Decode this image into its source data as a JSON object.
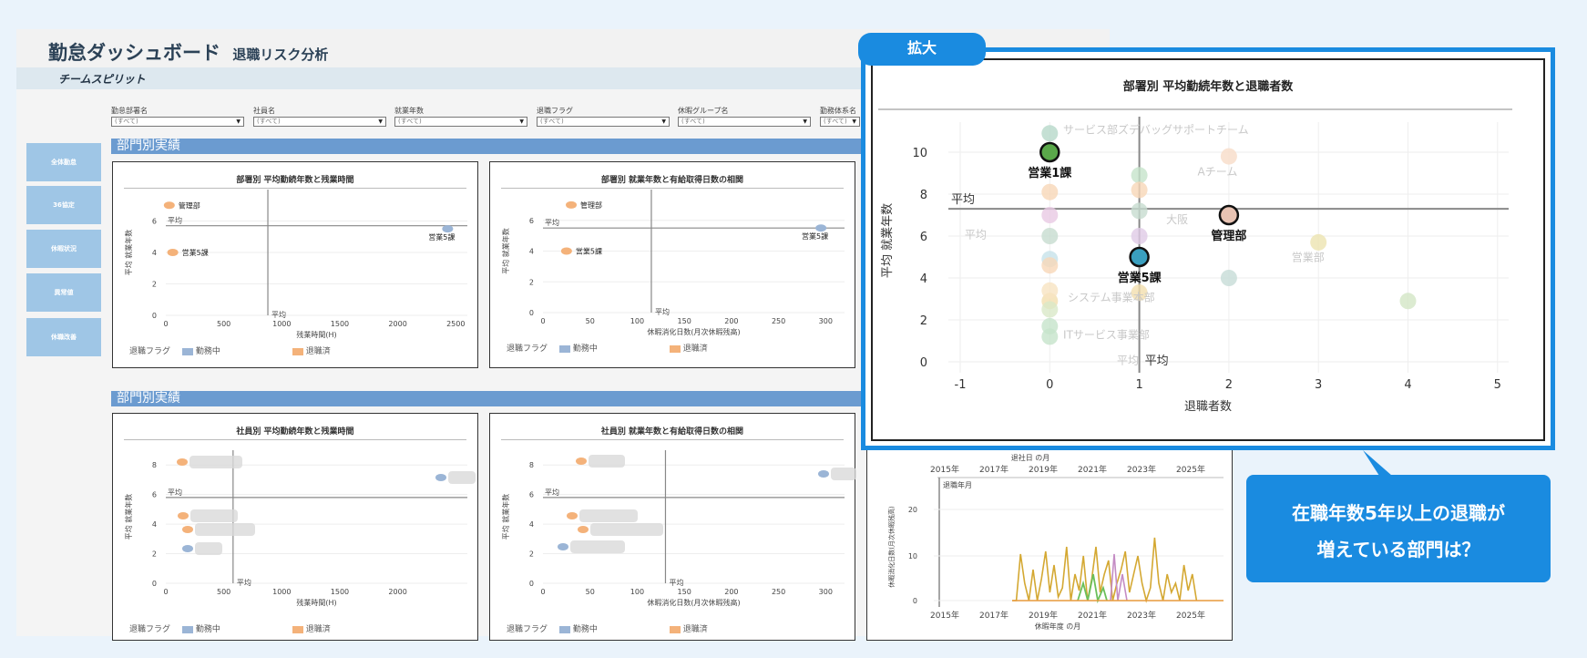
{
  "header": {
    "title": "勤怠ダッシュボード",
    "subtitle": "退職リスク分析",
    "brand": "チームスピリット"
  },
  "sidebar": {
    "items": [
      {
        "label": "全体勤怠"
      },
      {
        "label": "36協定"
      },
      {
        "label": "休暇状況"
      },
      {
        "label": "異常値"
      },
      {
        "label": "休職改善"
      }
    ]
  },
  "filters": [
    {
      "label": "勤怠部署名",
      "value": "(すべて)"
    },
    {
      "label": "社員名",
      "value": "(すべて)"
    },
    {
      "label": "就業年数",
      "value": "(すべて)"
    },
    {
      "label": "退職フラグ",
      "value": "(すべて)"
    },
    {
      "label": "休暇グループ名",
      "value": "(すべて)"
    },
    {
      "label": "勤務体系名",
      "value": "(すべて)"
    }
  ],
  "sections": [
    "部門別実績",
    "部門別実績"
  ],
  "legend": {
    "title": "退職フラグ",
    "active": "勤務中",
    "retired": "退職済"
  },
  "colors": {
    "active": "#9bb5d6",
    "retired": "#f4b27a",
    "accent": "#1a8be0",
    "frame": "#1a8be0"
  },
  "callout": {
    "tab": "拡大",
    "line1": "在職年数5年以上の退職が",
    "line2": "増えている部門は？"
  },
  "chart_data": [
    {
      "type": "scatter",
      "title": "部署別 平均勤続年数と残業時間",
      "xlabel": "残業時間(H)",
      "ylabel": "平均 就業年数",
      "xlim": [
        0,
        2600
      ],
      "ylim": [
        0,
        8
      ],
      "xticks": [
        "0",
        "500",
        "1000",
        "1500",
        "2000",
        "2500"
      ],
      "yticks": [
        "0",
        "2",
        "4",
        "6"
      ],
      "ref_label": "平均",
      "points": [
        {
          "label": "管理部",
          "x": 30,
          "y": 7,
          "status": "retired"
        },
        {
          "label": "営業5課",
          "x": 60,
          "y": 4,
          "status": "retired"
        },
        {
          "label": "営業5課",
          "x": 2430,
          "y": 5.5,
          "status": "active"
        }
      ]
    },
    {
      "type": "scatter",
      "title": "部署別 就業年数と有給取得日数の相関",
      "xlabel": "休暇消化日数(月次休暇残高)",
      "ylabel": "平均 就業年数",
      "xlim": [
        0,
        320
      ],
      "ylim": [
        0,
        8
      ],
      "xticks": [
        "0",
        "50",
        "100",
        "150",
        "200",
        "250",
        "300"
      ],
      "yticks": [
        "0",
        "2",
        "4",
        "6"
      ],
      "ref_label": "平均",
      "points": [
        {
          "label": "管理部",
          "x": 30,
          "y": 7,
          "status": "retired"
        },
        {
          "label": "営業5課",
          "x": 25,
          "y": 4,
          "status": "retired"
        },
        {
          "label": "営業5課",
          "x": 295,
          "y": 5.5,
          "status": "active"
        }
      ]
    },
    {
      "type": "scatter",
      "title": "社員別 平均勤続年数と残業時間",
      "xlabel": "残業時間(H)",
      "ylabel": "平均 就業年数",
      "xlim": [
        0,
        2600
      ],
      "ylim": [
        0,
        9
      ],
      "xticks": [
        "0",
        "500",
        "1000",
        "1500",
        "2000"
      ],
      "yticks": [
        "0",
        "2",
        "4",
        "6",
        "8"
      ],
      "ref_label": "平均"
    },
    {
      "type": "scatter",
      "title": "社員別 就業年数と有給取得日数の相関",
      "xlabel": "休暇消化日数(月次休暇残高)",
      "ylabel": "平均 就業年数",
      "xlim": [
        0,
        320
      ],
      "ylim": [
        0,
        9
      ],
      "xticks": [
        "0",
        "50",
        "100",
        "150",
        "200",
        "250",
        "300"
      ],
      "yticks": [
        "0",
        "2",
        "4",
        "6",
        "8"
      ],
      "ref_label": "平均"
    },
    {
      "type": "line",
      "top_axis_title": "退社日 の月",
      "top_ticks": [
        "2015年",
        "2017年",
        "2019年",
        "2021年",
        "2023年",
        "2025年"
      ],
      "series_label": "退職年月",
      "ylabel": "休暇消化日数(月次休暇残高)",
      "yticks": [
        "0",
        "10",
        "20"
      ],
      "xticks": [
        "2015年",
        "2017年",
        "2019年",
        "2021年",
        "2023年",
        "2025年"
      ],
      "xlabel": "休暇年度 の月"
    },
    {
      "type": "scatter",
      "title": "部署別 平均勤続年数と退職者数",
      "xlabel": "退職者数",
      "ylabel": "平均 就業年数",
      "xlim": [
        -1,
        5
      ],
      "ylim": [
        -0.5,
        11
      ],
      "xticks": [
        "-1",
        "0",
        "1",
        "2",
        "3",
        "4",
        "5"
      ],
      "yticks": [
        "0",
        "2",
        "4",
        "6",
        "8",
        "10"
      ],
      "ref_label": "平均",
      "highlighted": [
        {
          "label": "営業1課",
          "x": 0,
          "y": 10,
          "color": "#5aa84a"
        },
        {
          "label": "管理部",
          "x": 2,
          "y": 7,
          "color": "#e8c3b3"
        },
        {
          "label": "営業5課",
          "x": 1,
          "y": 5,
          "color": "#3a9fbf"
        }
      ],
      "faded_labels": [
        {
          "label": "サービス部ズデバッグサポートチーム",
          "x": 0.15,
          "y": 10.9
        },
        {
          "label": "Aチーム",
          "x": 1.65,
          "y": 8.9
        },
        {
          "label": "大阪",
          "x": 1.3,
          "y": 6.6
        },
        {
          "label": "平均",
          "x": -0.95,
          "y": 5.9
        },
        {
          "label": "営業部",
          "x": 2.7,
          "y": 4.8
        },
        {
          "label": "システム事業本部",
          "x": 0.2,
          "y": 2.9
        },
        {
          "label": "ITサービス事業部",
          "x": 0.15,
          "y": 1.1
        },
        {
          "label": "平均",
          "x": 0.75,
          "y": -0.1
        }
      ],
      "faded_points": [
        {
          "x": 0,
          "y": 10.9,
          "c": "#b7d8c9"
        },
        {
          "x": 0,
          "y": 8.1,
          "c": "#f7d7b8"
        },
        {
          "x": 0,
          "y": 7,
          "c": "#e8c9e3"
        },
        {
          "x": 0,
          "y": 6,
          "c": "#c7dccf"
        },
        {
          "x": 0,
          "y": 4.9,
          "c": "#c7e2ea"
        },
        {
          "x": 0,
          "y": 4.6,
          "c": "#f7d7b8"
        },
        {
          "x": 0,
          "y": 2.9,
          "c": "#f3dfae"
        },
        {
          "x": 0,
          "y": 2.5,
          "c": "#d9e8c8"
        },
        {
          "x": 0,
          "y": 1.7,
          "c": "#c6e3cb"
        },
        {
          "x": 0,
          "y": 1.2,
          "c": "#c6e3cb"
        },
        {
          "x": 0,
          "y": 3.4,
          "c": "#f7e3c2"
        },
        {
          "x": 1,
          "y": 8.9,
          "c": "#c6e3cb"
        },
        {
          "x": 1,
          "y": 8.2,
          "c": "#f7d7b8"
        },
        {
          "x": 1,
          "y": 7.2,
          "c": "#c7dccf"
        },
        {
          "x": 1,
          "y": 6,
          "c": "#e0cbe6"
        },
        {
          "x": 1,
          "y": 3.3,
          "c": "#f3dfae"
        },
        {
          "x": 2,
          "y": 9.8,
          "c": "#f7dcc8"
        },
        {
          "x": 2,
          "y": 4,
          "c": "#c7dcd7"
        },
        {
          "x": 3,
          "y": 5.7,
          "c": "#ece3b0"
        },
        {
          "x": 4,
          "y": 2.9,
          "c": "#d3e6c6"
        }
      ]
    }
  ]
}
